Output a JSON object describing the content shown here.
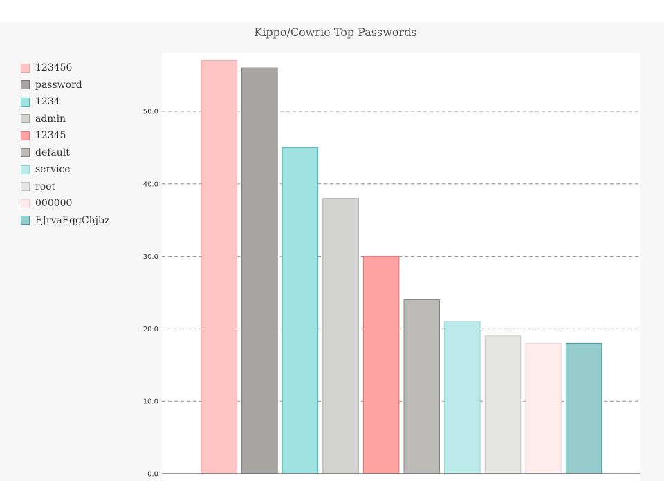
{
  "chart_data": {
    "type": "bar",
    "title": "Kippo/Cowrie Top Passwords",
    "xlabel": "",
    "ylabel": "",
    "categories": [
      "123456",
      "password",
      "1234",
      "admin",
      "12345",
      "default",
      "service",
      "root",
      "000000",
      "EJrvaEqgChjbz"
    ],
    "values": [
      57,
      56,
      45,
      38,
      30,
      24,
      21,
      19,
      18,
      18
    ],
    "ylim": [
      0,
      58
    ],
    "yticks": [
      "0.0",
      "10.0",
      "20.0",
      "30.0",
      "40.0",
      "50.0"
    ],
    "ytick_values": [
      0,
      10,
      20,
      30,
      40,
      50
    ],
    "grid": "horizontal dashed",
    "legend_position": "left",
    "colors": [
      {
        "fill": "#ffc5c5",
        "stroke": "#f3a0a0"
      },
      {
        "fill": "#a8a6a3",
        "stroke": "#777674"
      },
      {
        "fill": "#a0e1e1",
        "stroke": "#45bcbc"
      },
      {
        "fill": "#d3d4d2",
        "stroke": "#a5a6a4"
      },
      {
        "fill": "#ffa2a2",
        "stroke": "#ef6f6f"
      },
      {
        "fill": "#bcbab7",
        "stroke": "#8a8886"
      },
      {
        "fill": "#bce9e9",
        "stroke": "#8ed5d5"
      },
      {
        "fill": "#e4e5e3",
        "stroke": "#c3c4c2"
      },
      {
        "fill": "#ffecec",
        "stroke": "#f8d2d2"
      },
      {
        "fill": "#97cccc",
        "stroke": "#3f9c9c"
      }
    ]
  }
}
